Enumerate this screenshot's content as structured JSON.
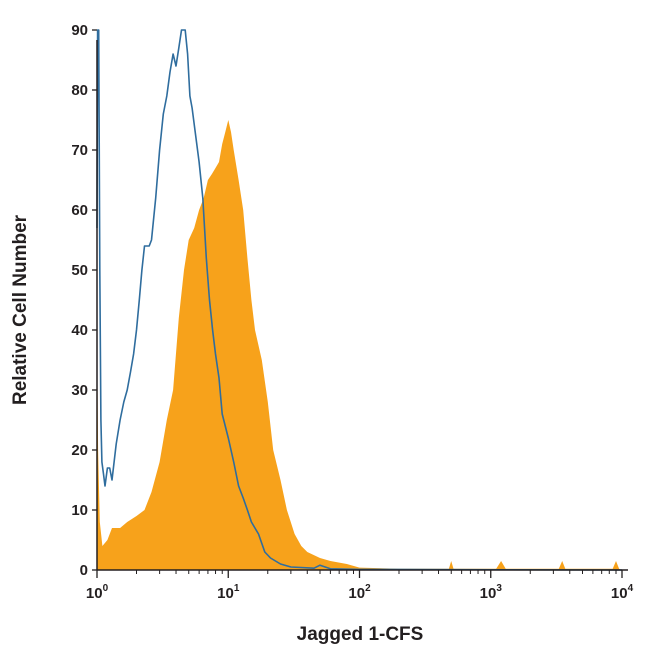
{
  "colors": {
    "filled_series": "#f7a21b",
    "outline_series": "#2f6d9e",
    "axis": "#231f20"
  },
  "chart_data": {
    "type": "area",
    "title": "",
    "xlabel": "Jagged 1-CFS",
    "ylabel": "Relative Cell Number",
    "xscale": "log",
    "xlim": [
      1,
      10000
    ],
    "ylim": [
      0,
      90
    ],
    "grid": false,
    "legend": "none",
    "x_ticks": [
      {
        "value": 1,
        "base": "10",
        "exp": "0"
      },
      {
        "value": 10,
        "base": "10",
        "exp": "1"
      },
      {
        "value": 100,
        "base": "10",
        "exp": "2"
      },
      {
        "value": 1000,
        "base": "10",
        "exp": "3"
      },
      {
        "value": 10000,
        "base": "10",
        "exp": "4"
      }
    ],
    "y_ticks": [
      0,
      10,
      20,
      30,
      40,
      50,
      60,
      70,
      80,
      90
    ],
    "series": [
      {
        "style": "filled",
        "color": "#f7a21b",
        "points": [
          [
            1.0,
            40
          ],
          [
            1.02,
            20
          ],
          [
            1.05,
            8
          ],
          [
            1.1,
            4
          ],
          [
            1.2,
            5
          ],
          [
            1.3,
            7
          ],
          [
            1.5,
            7
          ],
          [
            1.7,
            8
          ],
          [
            2.0,
            9
          ],
          [
            2.3,
            10
          ],
          [
            2.6,
            13
          ],
          [
            3.0,
            18
          ],
          [
            3.4,
            25
          ],
          [
            3.8,
            30
          ],
          [
            4.2,
            42
          ],
          [
            4.6,
            50
          ],
          [
            5.0,
            55
          ],
          [
            5.5,
            57
          ],
          [
            6.0,
            60
          ],
          [
            6.5,
            62
          ],
          [
            7.0,
            65
          ],
          [
            7.5,
            66
          ],
          [
            8.0,
            67
          ],
          [
            8.5,
            68
          ],
          [
            9.0,
            71
          ],
          [
            9.5,
            73
          ],
          [
            10.0,
            75
          ],
          [
            10.5,
            73
          ],
          [
            11.0,
            70
          ],
          [
            12.0,
            65
          ],
          [
            13.0,
            60
          ],
          [
            14.0,
            52
          ],
          [
            15.0,
            45
          ],
          [
            16.0,
            40
          ],
          [
            18.0,
            35
          ],
          [
            20.0,
            28
          ],
          [
            22.0,
            20
          ],
          [
            25.0,
            15
          ],
          [
            28.0,
            10
          ],
          [
            32.0,
            6
          ],
          [
            36.0,
            4
          ],
          [
            40.0,
            3
          ],
          [
            50.0,
            2
          ],
          [
            60.0,
            1.5
          ],
          [
            80.0,
            1
          ],
          [
            100.0,
            0.4
          ],
          [
            200.0,
            0.2
          ],
          [
            480.0,
            0.2
          ],
          [
            500.0,
            1.5
          ],
          [
            520.0,
            0.2
          ],
          [
            1100.0,
            0.2
          ],
          [
            1200.0,
            1.5
          ],
          [
            1300.0,
            0.2
          ],
          [
            3300.0,
            0.2
          ],
          [
            3500.0,
            1.5
          ],
          [
            3700.0,
            0.2
          ],
          [
            8500.0,
            0.2
          ],
          [
            9000.0,
            1.5
          ],
          [
            9500.0,
            0.2
          ],
          [
            10000.0,
            0
          ]
        ]
      },
      {
        "style": "outline",
        "color": "#2f6d9e",
        "points": [
          [
            1.0,
            57
          ],
          [
            1.01,
            90
          ],
          [
            1.03,
            90
          ],
          [
            1.05,
            50
          ],
          [
            1.07,
            25
          ],
          [
            1.09,
            18
          ],
          [
            1.12,
            16
          ],
          [
            1.15,
            14
          ],
          [
            1.2,
            17
          ],
          [
            1.25,
            17
          ],
          [
            1.3,
            15
          ],
          [
            1.35,
            18
          ],
          [
            1.4,
            21
          ],
          [
            1.5,
            25
          ],
          [
            1.6,
            28
          ],
          [
            1.7,
            30
          ],
          [
            1.8,
            33
          ],
          [
            1.9,
            36
          ],
          [
            2.0,
            40
          ],
          [
            2.1,
            45
          ],
          [
            2.2,
            50
          ],
          [
            2.3,
            54
          ],
          [
            2.5,
            54
          ],
          [
            2.6,
            55
          ],
          [
            2.8,
            62
          ],
          [
            3.0,
            70
          ],
          [
            3.2,
            76
          ],
          [
            3.4,
            79
          ],
          [
            3.6,
            83
          ],
          [
            3.8,
            86
          ],
          [
            4.0,
            84
          ],
          [
            4.2,
            87
          ],
          [
            4.4,
            90
          ],
          [
            4.7,
            90
          ],
          [
            4.9,
            86
          ],
          [
            5.1,
            79
          ],
          [
            5.3,
            77
          ],
          [
            5.6,
            73
          ],
          [
            6.0,
            68
          ],
          [
            6.4,
            62
          ],
          [
            6.8,
            52
          ],
          [
            7.2,
            45
          ],
          [
            7.6,
            40
          ],
          [
            8.0,
            36
          ],
          [
            8.5,
            32
          ],
          [
            9.0,
            26
          ],
          [
            10.0,
            22
          ],
          [
            11.0,
            18
          ],
          [
            12.0,
            14
          ],
          [
            13.0,
            12
          ],
          [
            14.0,
            10
          ],
          [
            15.0,
            8
          ],
          [
            17.0,
            6
          ],
          [
            19.0,
            3
          ],
          [
            21.0,
            2
          ],
          [
            25.0,
            1
          ],
          [
            30.0,
            0.5
          ],
          [
            45.0,
            0.3
          ],
          [
            50.0,
            0.8
          ],
          [
            60.0,
            0.2
          ],
          [
            100.0,
            0.1
          ],
          [
            10000.0,
            0
          ]
        ]
      }
    ]
  }
}
